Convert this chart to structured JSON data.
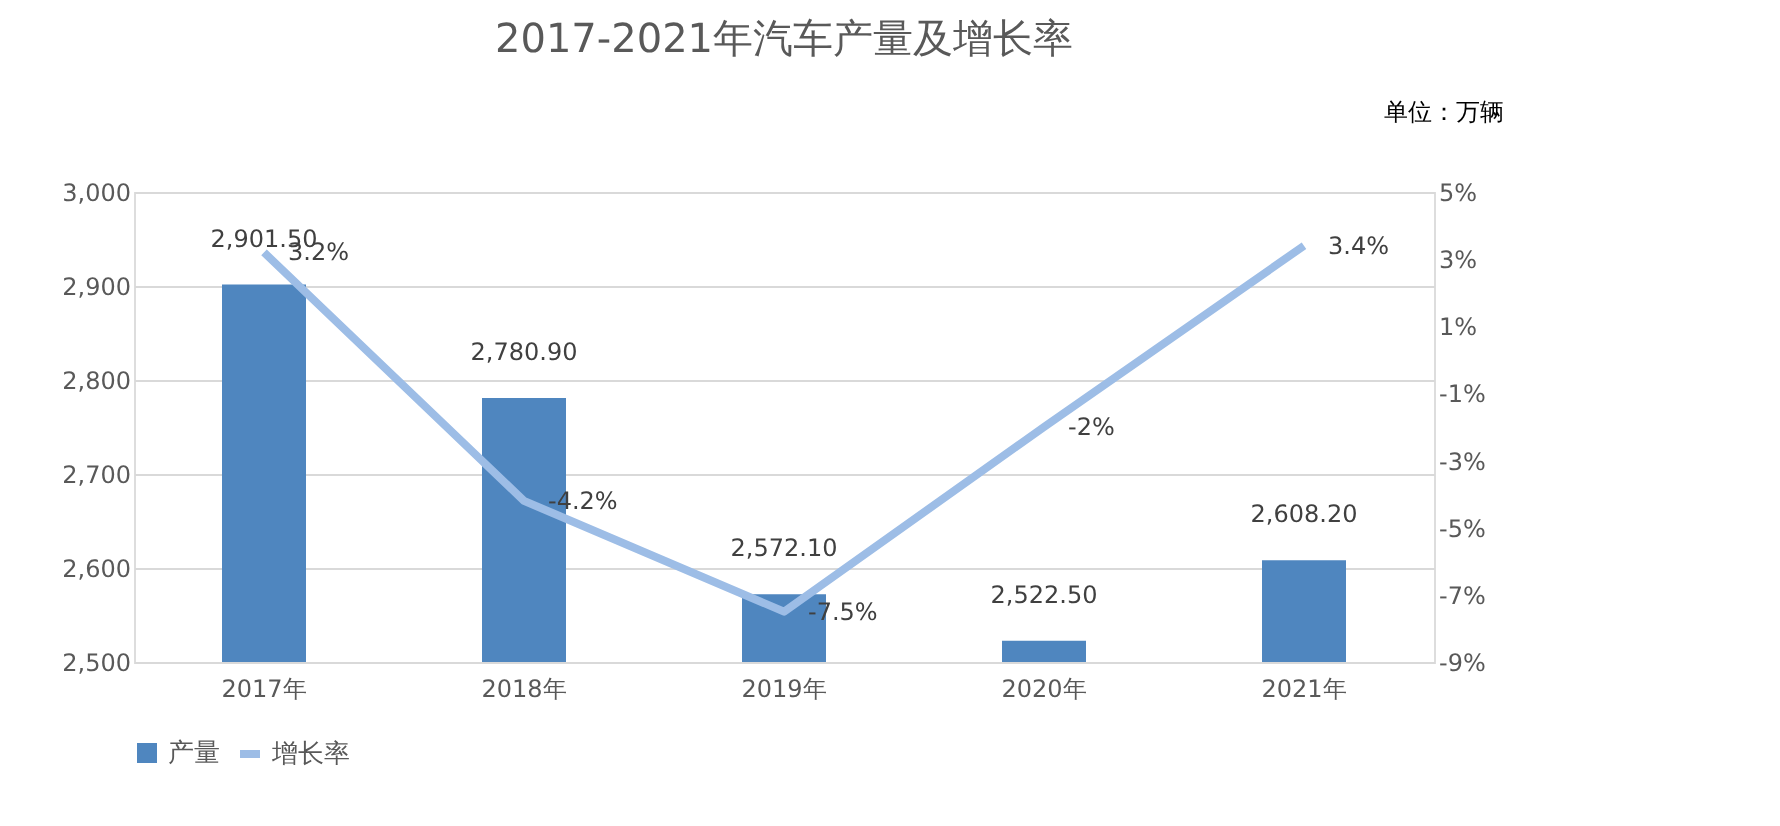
{
  "chart_data": {
    "type": "bar",
    "title": "2017-2021年汽车产量及增长率",
    "annotations": [
      "单位：万辆"
    ],
    "categories": [
      "2017年",
      "2018年",
      "2019年",
      "2020年",
      "2021年"
    ],
    "series": [
      {
        "name": "产量",
        "color": "#4f86bf",
        "values": [
          2901.5,
          2780.9,
          2572.1,
          2522.5,
          2608.2
        ],
        "value_labels": [
          "2,901.50",
          "2,780.90",
          "2,572.10",
          "2,522.50",
          "2,608.20"
        ]
      },
      {
        "name": "增长率",
        "type": "line",
        "axis": "y2",
        "color": "#9dbde6",
        "values": [
          3.2,
          -4.2,
          -7.5,
          -2,
          3.4
        ],
        "value_labels": [
          "3.2%",
          "-4.2%",
          "-7.5%",
          "-2%",
          "3.4%"
        ]
      }
    ],
    "ylim": [
      2500,
      3000
    ],
    "yticks": [
      {
        "value": 2500,
        "label": "2,500"
      },
      {
        "value": 2600,
        "label": "2,600"
      },
      {
        "value": 2700,
        "label": "2,700"
      },
      {
        "value": 2800,
        "label": "2,800"
      },
      {
        "value": 2900,
        "label": "2,900"
      },
      {
        "value": 3000,
        "label": "3,000"
      }
    ],
    "y2lim": [
      -9,
      5
    ],
    "y2ticks": [
      {
        "value": -9,
        "label": "-9%"
      },
      {
        "value": -7,
        "label": "-7%"
      },
      {
        "value": -5,
        "label": "-5%"
      },
      {
        "value": -3,
        "label": "-3%"
      },
      {
        "value": -1,
        "label": "-1%"
      },
      {
        "value": 1,
        "label": "1%"
      },
      {
        "value": 3,
        "label": "3%"
      },
      {
        "value": 5,
        "label": "5%"
      }
    ],
    "grid": "y",
    "legend": "bottom",
    "line_style": "solid",
    "marker": "none"
  }
}
